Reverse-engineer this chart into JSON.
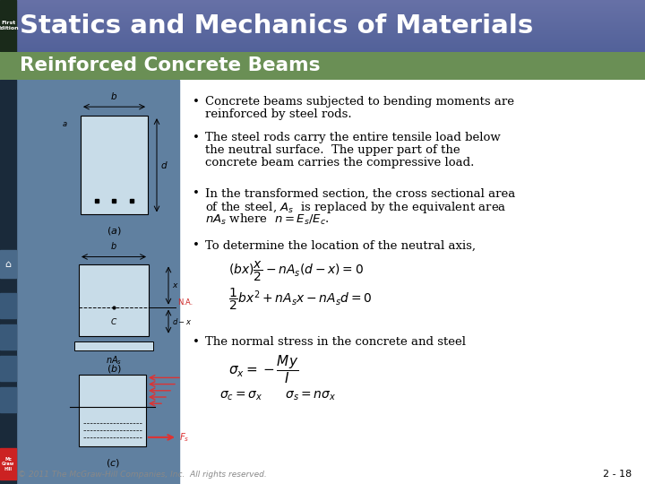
{
  "title": "Statics and Mechanics of Materials",
  "subtitle": "Reinforced Concrete Beams",
  "title_bg": "#6070a8",
  "subtitle_bg": "#6a8f55",
  "left_panel_bg": "#5a7090",
  "sidebar_dark": "#1a2a3a",
  "sidebar_green": "#3a5a2a",
  "nav_blue": "#3a5080",
  "nav_blue2": "#2a4070",
  "mc_red": "#cc2222",
  "beam_fill": "#c8dce8",
  "arrow_red": "#dd3333",
  "bg_color": "#ffffff",
  "footer_color": "#888888",
  "text_color": "#000000",
  "bullets": [
    "Concrete beams subjected to bending moments are\nreinforced by steel rods.",
    "The steel rods carry the entire tensile load below\nthe neutral surface.  The upper part of the\nconcrete beam carries the compressive load.",
    "In the transformed section, the cross sectional area\nof the steel, $A_s$  is replaced by the equivalent area\n$nA_s$ where  $n = E_s/E_c$.",
    "To determine the location of the neutral axis,",
    "The normal stress in the concrete and steel"
  ],
  "footer": "© 2011 The McGraw-Hill Companies, Inc.  All rights reserved.",
  "page": "2 - 18"
}
